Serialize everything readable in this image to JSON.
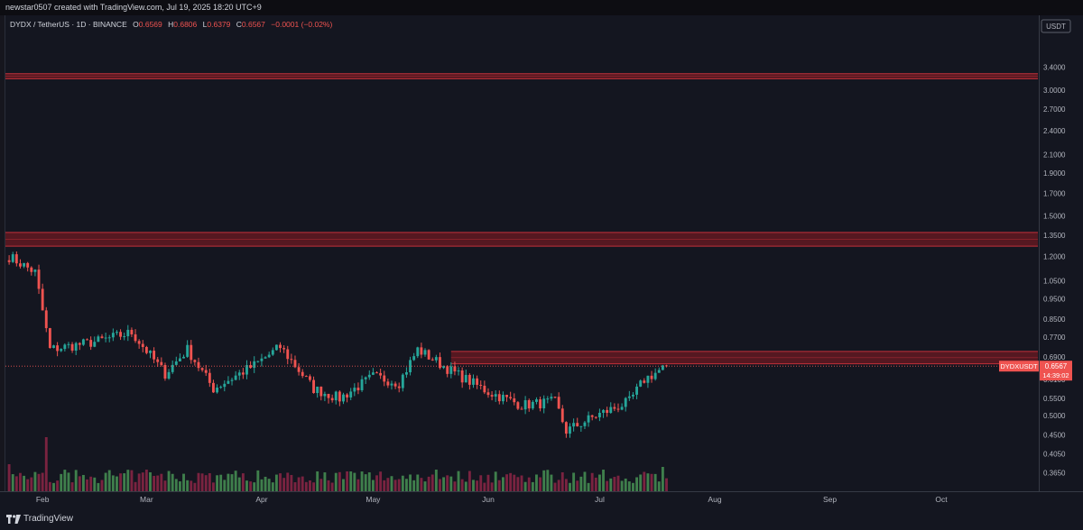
{
  "header": {
    "creator_text": "newstar0507 created with TradingView.com, Jul 19, 2025 18:20 UTC+9"
  },
  "legend": {
    "symbol": "DYDX / TetherUS · 1D · BINANCE",
    "o_label": "O",
    "o_value": "0.6569",
    "h_label": "H",
    "h_value": "0.6806",
    "l_label": "L",
    "l_value": "0.6379",
    "c_label": "C",
    "c_value": "0.6567",
    "change": "−0.0001 (−0.02%)"
  },
  "price_label": {
    "symbol": "DYDXUSDT",
    "price": "0.6567",
    "countdown": "14:39:02"
  },
  "branding": {
    "logo_text": "TradingView"
  },
  "colors": {
    "up": "#26a69a",
    "down": "#ef5350",
    "up_volume": "#3f7f4c",
    "down_volume": "#7a2340",
    "zone_fill": "#6b1a22",
    "zone_line": "#c2303a",
    "background": "#141620"
  },
  "chart_data": {
    "type": "candlestick",
    "symbol": "DYDX / TetherUS",
    "interval": "1D",
    "exchange": "BINANCE",
    "quote": "USDT",
    "y_scale": "log",
    "ylim": [
      0.33,
      4.5
    ],
    "y_ticks": [
      "3.4000",
      "3.0000",
      "2.7000",
      "2.4000",
      "2.1000",
      "1.9000",
      "1.7000",
      "1.5000",
      "1.3500",
      "1.2000",
      "1.0500",
      "0.9500",
      "0.8500",
      "0.7700",
      "0.6900",
      "0.6100",
      "0.5500",
      "0.5000",
      "0.4500",
      "0.4050",
      "0.3650"
    ],
    "x_ticks": [
      {
        "label": "Feb",
        "date": "2025-02-01"
      },
      {
        "label": "Mar",
        "date": "2025-03-01"
      },
      {
        "label": "Apr",
        "date": "2025-04-01"
      },
      {
        "label": "May",
        "date": "2025-05-01"
      },
      {
        "label": "Jun",
        "date": "2025-06-01"
      },
      {
        "label": "Jul",
        "date": "2025-07-01"
      },
      {
        "label": "Aug",
        "date": "2025-08-01"
      },
      {
        "label": "Sep",
        "date": "2025-09-01"
      },
      {
        "label": "Oct",
        "date": "2025-10-01"
      }
    ],
    "xlim": [
      "2025-01-22",
      "2025-10-27"
    ],
    "last_price": 0.6567,
    "zones": [
      {
        "low": 3.19,
        "high": 3.28,
        "start": "2025-01-22"
      },
      {
        "low": 1.27,
        "high": 1.37,
        "start": "2025-01-22"
      },
      {
        "low": 0.665,
        "high": 0.712,
        "start": "2025-05-22"
      }
    ],
    "key_points": [
      {
        "date": "2025-01-23",
        "price": 1.2
      },
      {
        "date": "2025-01-30",
        "price": 1.1
      },
      {
        "date": "2025-02-03",
        "price": 0.72
      },
      {
        "date": "2025-02-15",
        "price": 0.75
      },
      {
        "date": "2025-02-25",
        "price": 0.79
      },
      {
        "date": "2025-03-06",
        "price": 0.63
      },
      {
        "date": "2025-03-12",
        "price": 0.72
      },
      {
        "date": "2025-03-19",
        "price": 0.58
      },
      {
        "date": "2025-03-30",
        "price": 0.66
      },
      {
        "date": "2025-04-06",
        "price": 0.73
      },
      {
        "date": "2025-04-15",
        "price": 0.58
      },
      {
        "date": "2025-04-22",
        "price": 0.55
      },
      {
        "date": "2025-05-01",
        "price": 0.62
      },
      {
        "date": "2025-05-08",
        "price": 0.6
      },
      {
        "date": "2025-05-13",
        "price": 0.72
      },
      {
        "date": "2025-05-22",
        "price": 0.64
      },
      {
        "date": "2025-06-01",
        "price": 0.57
      },
      {
        "date": "2025-06-10",
        "price": 0.53
      },
      {
        "date": "2025-06-19",
        "price": 0.54
      },
      {
        "date": "2025-06-22",
        "price": 0.46
      },
      {
        "date": "2025-06-30",
        "price": 0.5
      },
      {
        "date": "2025-07-09",
        "price": 0.54
      },
      {
        "date": "2025-07-13",
        "price": 0.61
      },
      {
        "date": "2025-07-19",
        "price": 0.6567
      }
    ],
    "volume_spikes": [
      {
        "date": "2025-02-02",
        "rel": 1.0
      },
      {
        "date": "2025-03-01",
        "rel": 0.4
      },
      {
        "date": "2025-05-18",
        "rel": 0.4
      },
      {
        "date": "2025-06-21",
        "rel": 0.35
      },
      {
        "date": "2025-07-18",
        "rel": 0.45
      }
    ]
  }
}
